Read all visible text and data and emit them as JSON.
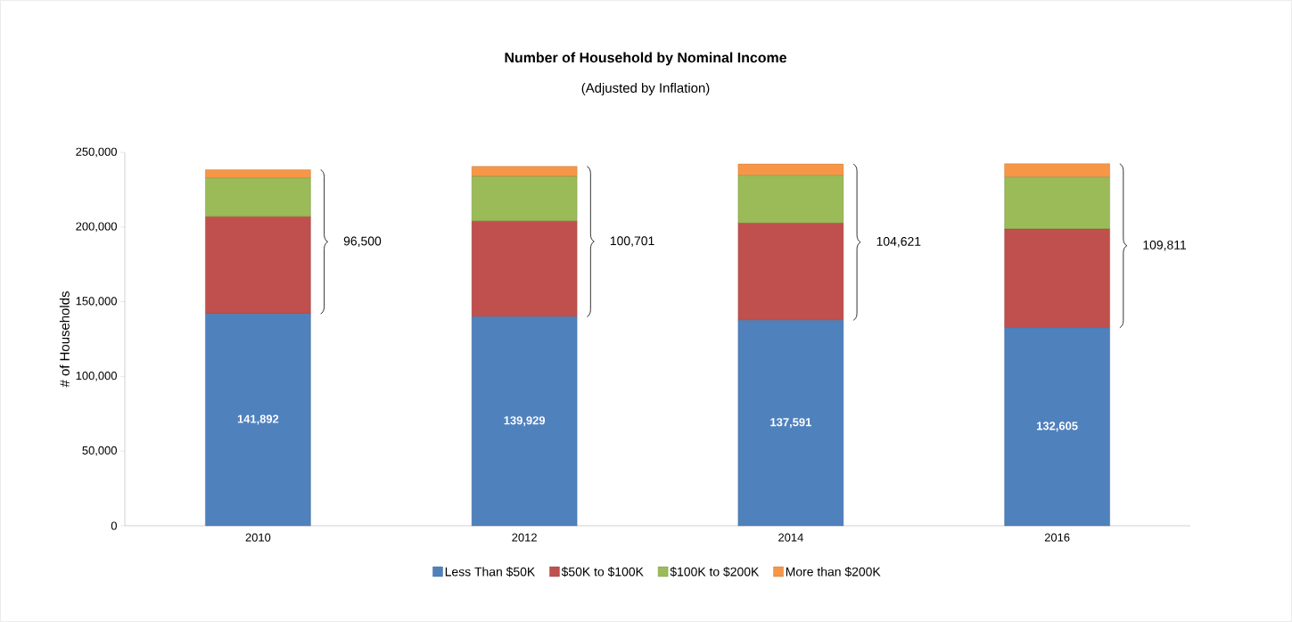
{
  "chart_data": {
    "type": "bar",
    "title": "Number of Household by Nominal Income",
    "subtitle": "(Adjusted by Inflation)",
    "ylabel": "# of Households",
    "categories": [
      "2010",
      "2012",
      "2014",
      "2016"
    ],
    "stacked": true,
    "legend": "bottom",
    "ylim": [
      0,
      250000
    ],
    "yticks": [
      0,
      {
        "value": 50000,
        "label": "50,000"
      },
      {
        "value": 100000,
        "label": "100,000"
      },
      {
        "value": 150000,
        "label": "150,000"
      },
      {
        "value": 200000,
        "label": "200,000"
      },
      {
        "value": 250000,
        "label": "250,000"
      }
    ],
    "series": [
      {
        "name": "Less Than $50K",
        "color": "#4f81bd",
        "values": [
          141892,
          139929,
          137591,
          132605
        ],
        "value_labels": [
          "141,892",
          "139,929",
          "137,591",
          "132,605"
        ]
      },
      {
        "name": "$50K to $100K",
        "color": "#c0504d",
        "values": [
          65000,
          64000,
          65000,
          66000
        ]
      },
      {
        "name": "$100K to $200K",
        "color": "#9bbb59",
        "values": [
          26000,
          30000,
          32000,
          34800
        ]
      },
      {
        "name": "More than $200K",
        "color": "#f79646",
        "values": [
          5500,
          6700,
          7600,
          9000
        ]
      }
    ],
    "annotations": [
      "96,500",
      "100,701",
      "104,621",
      "109,811"
    ]
  }
}
